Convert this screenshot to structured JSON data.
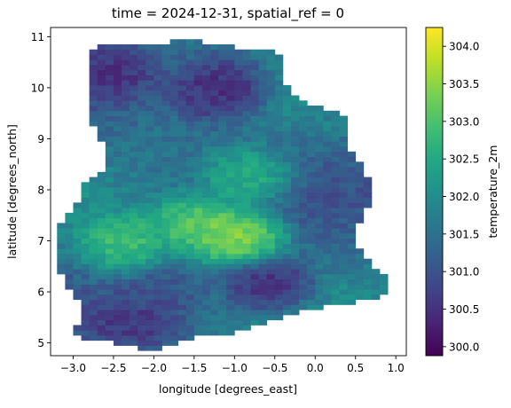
{
  "chart_data": {
    "type": "heatmap",
    "title": "time = 2024-12-31, spatial_ref = 0",
    "xlabel": "longitude [degrees_east]",
    "ylabel": "latitude [degrees_north]",
    "xlim": [
      -3.28,
      1.13
    ],
    "ylim": [
      4.75,
      11.18
    ],
    "x_ticks": [
      -3.0,
      -2.5,
      -2.0,
      -1.5,
      -1.0,
      -0.5,
      0.0,
      0.5,
      1.0
    ],
    "x_tick_labels": [
      "−3.0",
      "−2.5",
      "−2.0",
      "−1.5",
      "−1.0",
      "−0.5",
      "0.0",
      "0.5",
      "1.0"
    ],
    "y_ticks": [
      5,
      6,
      7,
      8,
      9,
      10,
      11
    ],
    "y_tick_labels": [
      "5",
      "6",
      "7",
      "8",
      "9",
      "10",
      "11"
    ],
    "colormap": "viridis",
    "colorbar": {
      "label": "temperature_2m",
      "range": [
        299.88,
        304.25
      ],
      "ticks": [
        300.0,
        300.5,
        301.0,
        301.5,
        302.0,
        302.5,
        303.0,
        303.5,
        304.0
      ],
      "tick_labels": [
        "300.0",
        "300.5",
        "301.0",
        "301.5",
        "302.0",
        "302.5",
        "303.0",
        "303.5",
        "304.0"
      ]
    },
    "grid": false,
    "cell_size_deg": 0.1,
    "region_outline_lon_lat": [
      [
        -2.7,
        10.85
      ],
      [
        -1.95,
        10.85
      ],
      [
        -1.6,
        10.95
      ],
      [
        -1.05,
        10.8
      ],
      [
        -0.55,
        10.72
      ],
      [
        -0.35,
        10.55
      ],
      [
        -0.35,
        10.0
      ],
      [
        -0.15,
        9.7
      ],
      [
        0.25,
        9.55
      ],
      [
        0.45,
        9.4
      ],
      [
        0.4,
        8.85
      ],
      [
        0.6,
        8.4
      ],
      [
        0.75,
        7.85
      ],
      [
        0.55,
        7.35
      ],
      [
        0.55,
        6.8
      ],
      [
        0.75,
        6.45
      ],
      [
        0.95,
        6.15
      ],
      [
        0.8,
        5.85
      ],
      [
        0.2,
        5.75
      ],
      [
        -0.15,
        5.6
      ],
      [
        -0.65,
        5.35
      ],
      [
        -1.05,
        5.15
      ],
      [
        -1.45,
        5.1
      ],
      [
        -1.85,
        4.95
      ],
      [
        -2.1,
        4.8
      ],
      [
        -2.3,
        4.95
      ],
      [
        -2.75,
        5.05
      ],
      [
        -2.95,
        5.1
      ],
      [
        -2.95,
        5.35
      ],
      [
        -2.9,
        5.75
      ],
      [
        -3.05,
        6.0
      ],
      [
        -3.15,
        6.3
      ],
      [
        -3.25,
        6.6
      ],
      [
        -3.2,
        6.9
      ],
      [
        -3.15,
        7.3
      ],
      [
        -2.95,
        7.75
      ],
      [
        -2.85,
        8.1
      ],
      [
        -2.6,
        8.35
      ],
      [
        -2.6,
        8.8
      ],
      [
        -2.75,
        9.2
      ],
      [
        -2.75,
        9.7
      ],
      [
        -2.8,
        10.2
      ],
      [
        -2.85,
        10.55
      ]
    ],
    "temperature_features": [
      {
        "description": "warm core",
        "lon": -0.95,
        "lat": 7.05,
        "value": 304.1
      },
      {
        "description": "warm band",
        "lon": -1.45,
        "lat": 7.35,
        "value": 303.6
      },
      {
        "description": "warm band",
        "lon": -2.35,
        "lat": 6.95,
        "value": 303.3
      },
      {
        "description": "warm patch",
        "lon": -0.85,
        "lat": 8.25,
        "value": 303.0
      },
      {
        "description": "cool northwest",
        "lon": -2.5,
        "lat": 10.3,
        "value": 300.3
      },
      {
        "description": "cool north",
        "lon": -1.2,
        "lat": 10.1,
        "value": 300.6
      },
      {
        "description": "cool spot",
        "lon": -1.2,
        "lat": 9.95,
        "value": 300.0
      },
      {
        "description": "cool south",
        "lon": -2.2,
        "lat": 5.4,
        "value": 300.3
      },
      {
        "description": "cool spot",
        "lon": -0.6,
        "lat": 6.15,
        "value": 300.1
      },
      {
        "description": "cool patch",
        "lon": -1.9,
        "lat": 6.0,
        "value": 300.9
      }
    ],
    "background_value": 301.5
  }
}
